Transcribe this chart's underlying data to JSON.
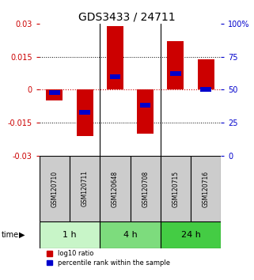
{
  "title": "GDS3433 / 24711",
  "samples": [
    "GSM120710",
    "GSM120711",
    "GSM120648",
    "GSM120708",
    "GSM120715",
    "GSM120716"
  ],
  "log10_ratio": [
    -0.005,
    -0.021,
    0.029,
    -0.02,
    0.022,
    0.014
  ],
  "percentile_rank": [
    48,
    33,
    60,
    38,
    62,
    50
  ],
  "ylim_left": [
    -0.03,
    0.03
  ],
  "ylim_right": [
    0,
    100
  ],
  "yticks_left": [
    -0.03,
    -0.015,
    0,
    0.015,
    0.03
  ],
  "ytick_labels_left": [
    "-0.03",
    "-0.015",
    "0",
    "0.015",
    "0.03"
  ],
  "yticks_right": [
    0,
    25,
    50,
    75,
    100
  ],
  "ytick_labels_right": [
    "0",
    "25",
    "50",
    "75",
    "100%"
  ],
  "time_groups": [
    {
      "label": "1 h",
      "cols": [
        0,
        1
      ],
      "color": "#c8f5c8"
    },
    {
      "label": "4 h",
      "cols": [
        2,
        3
      ],
      "color": "#7ddc7d"
    },
    {
      "label": "24 h",
      "cols": [
        4,
        5
      ],
      "color": "#44cc44"
    }
  ],
  "bar_color_red": "#cc0000",
  "bar_color_blue": "#0000cc",
  "bar_width": 0.55,
  "blue_bar_width": 0.35,
  "grid_color": "#000000",
  "zero_line_color": "#cc0000",
  "background_plot": "#ffffff",
  "sample_box_color": "#cccccc",
  "legend_red_label": "log10 ratio",
  "legend_blue_label": "percentile rank within the sample"
}
